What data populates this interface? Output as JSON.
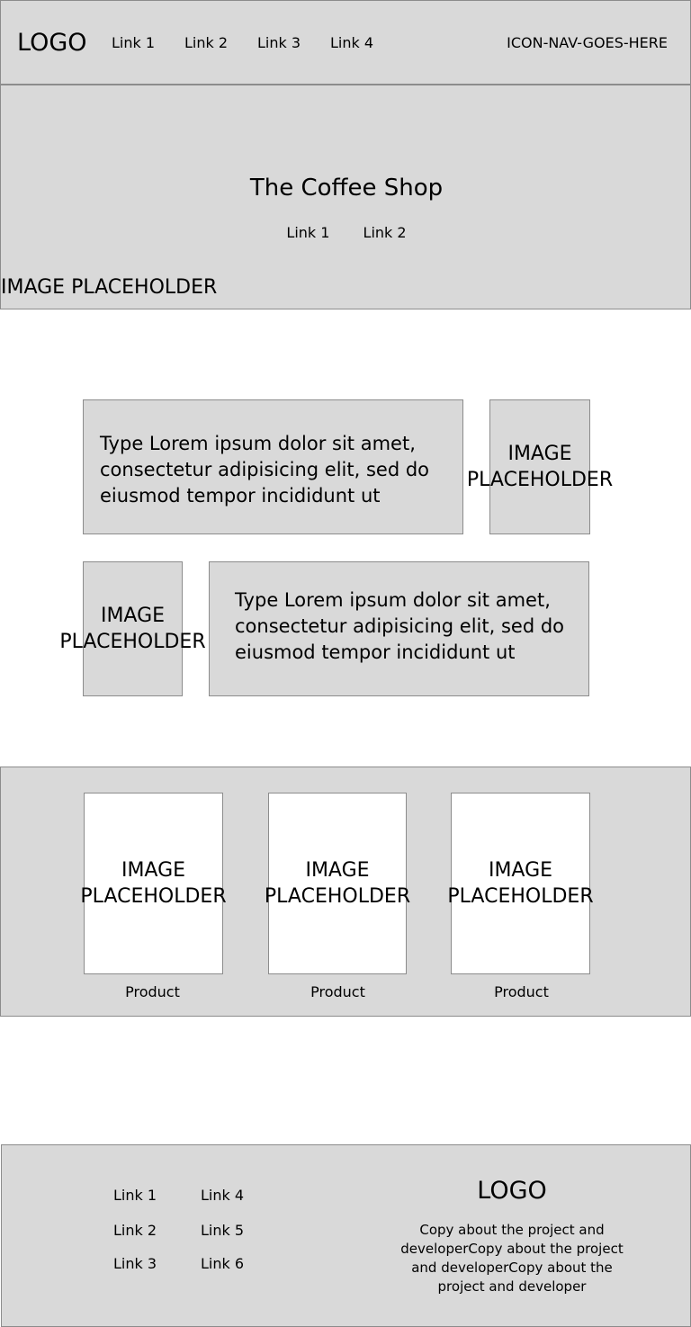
{
  "header": {
    "logo": "LOGO",
    "nav_links": [
      "Link 1",
      "Link 2",
      "Link 3",
      "Link 4"
    ],
    "icon_nav": "ICON-NAV-GOES-HERE"
  },
  "hero": {
    "title": "The Coffee Shop",
    "links": [
      "Link 1",
      "Link 2"
    ],
    "placeholder": "IMAGE PLACEHOLDER"
  },
  "content": {
    "row1": {
      "text": "Type Lorem ipsum dolor sit amet, consectetur adipisicing elit, sed do eiusmod tempor incididunt ut",
      "image": "IMAGE PLACEHOLDER"
    },
    "row2": {
      "image": "IMAGE PLACEHOLDER",
      "text": "Type Lorem ipsum dolor sit amet, consectetur adipisicing elit, sed do eiusmod tempor incididunt ut"
    }
  },
  "products": [
    {
      "image": "IMAGE PLACEHOLDER",
      "label": "Product"
    },
    {
      "image": "IMAGE PLACEHOLDER",
      "label": "Product"
    },
    {
      "image": "IMAGE PLACEHOLDER",
      "label": "Product"
    }
  ],
  "footer": {
    "links_col1": [
      "Link 1",
      "Link 2",
      "Link 3"
    ],
    "links_col2": [
      "Link 4",
      "Link 5",
      "Link 6"
    ],
    "logo": "LOGO",
    "copy": "Copy about the project and developerCopy about the project and developerCopy about the project and developer"
  },
  "colors": {
    "panel": "#d9d9d9",
    "border": "#8c8c8c",
    "card": "#ffffff"
  }
}
